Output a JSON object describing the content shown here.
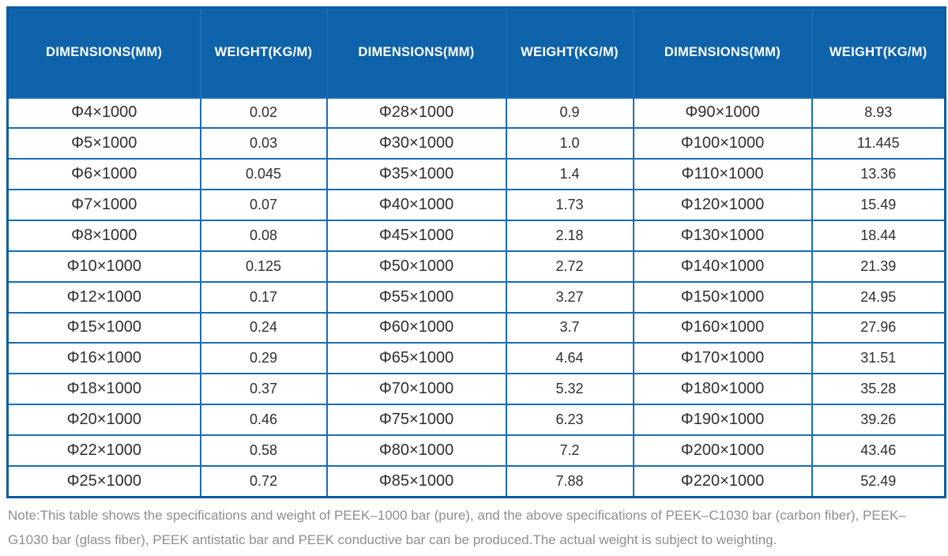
{
  "chart_data": {
    "type": "table",
    "column_headers": [
      "DIMENSIONS(MM)",
      "WEIGHT(KG/M)",
      "DIMENSIONS(MM)",
      "WEIGHT(KG/M)",
      "DIMENSIONS(MM)",
      "WEIGHT(KG/M)"
    ],
    "rows": [
      [
        "Φ4×1000",
        "0.02",
        "Φ28×1000",
        "0.9",
        "Φ90×1000",
        "8.93"
      ],
      [
        "Φ5×1000",
        "0.03",
        "Φ30×1000",
        "1.0",
        "Φ100×1000",
        "11.445"
      ],
      [
        "Φ6×1000",
        "0.045",
        "Φ35×1000",
        "1.4",
        "Φ110×1000",
        "13.36"
      ],
      [
        "Φ7×1000",
        "0.07",
        "Φ40×1000",
        "1.73",
        "Φ120×1000",
        "15.49"
      ],
      [
        "Φ8×1000",
        "0.08",
        "Φ45×1000",
        "2.18",
        "Φ130×1000",
        "18.44"
      ],
      [
        "Φ10×1000",
        "0.125",
        "Φ50×1000",
        "2.72",
        "Φ140×1000",
        "21.39"
      ],
      [
        "Φ12×1000",
        "0.17",
        "Φ55×1000",
        "3.27",
        "Φ150×1000",
        "24.95"
      ],
      [
        "Φ15×1000",
        "0.24",
        "Φ60×1000",
        "3.7",
        "Φ160×1000",
        "27.96"
      ],
      [
        "Φ16×1000",
        "0.29",
        "Φ65×1000",
        "4.64",
        "Φ170×1000",
        "31.51"
      ],
      [
        "Φ18×1000",
        "0.37",
        "Φ70×1000",
        "5.32",
        "Φ180×1000",
        "35.28"
      ],
      [
        "Φ20×1000",
        "0.46",
        "Φ75×1000",
        "6.23",
        "Φ190×1000",
        "39.26"
      ],
      [
        "Φ22×1000",
        "0.58",
        "Φ80×1000",
        "7.2",
        "Φ200×1000",
        "43.46"
      ],
      [
        "Φ25×1000",
        "0.72",
        "Φ85×1000",
        "7.88",
        "Φ220×1000",
        "52.49"
      ]
    ]
  },
  "note": {
    "text": "Note:This table shows the specifications and weight of PEEK–1000 bar (pure), and the above specifications of PEEK–C1030 bar (carbon fiber), PEEK–G1030 bar (glass fiber), PEEK antistatic bar and PEEK conductive bar can be produced.The actual weight is subject to weighting."
  },
  "colors": {
    "header_bg": "#0e63ab",
    "header_text": "#ffffff",
    "grid_border": "#1a6cb5",
    "outer_border": "#0b5ca6",
    "cell_text": "#2f2f2f",
    "note_text": "#8e8e8e"
  }
}
